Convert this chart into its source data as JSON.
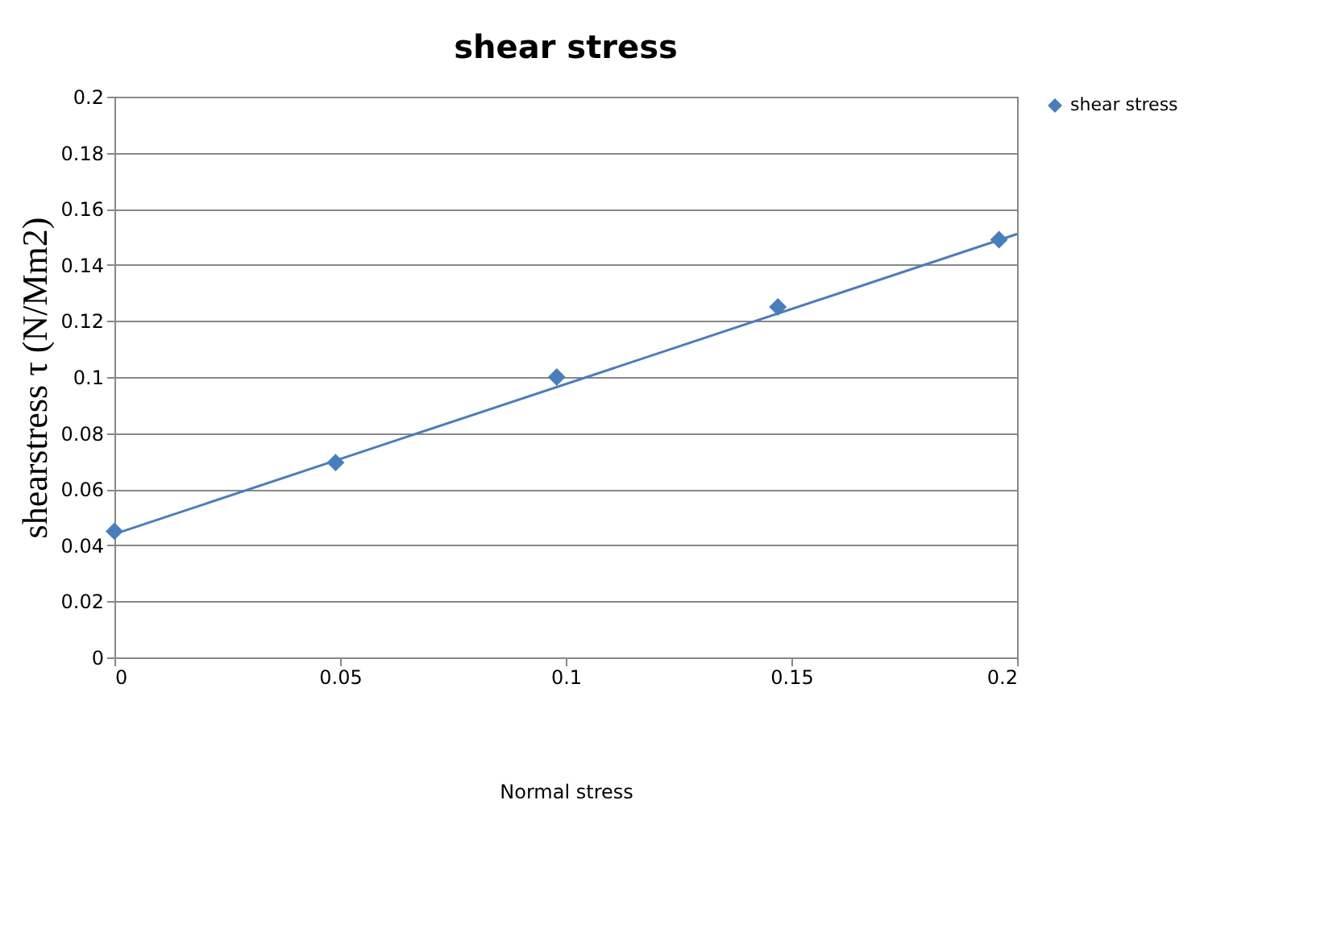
{
  "chart_data": {
    "type": "scatter",
    "title": "shear stress",
    "xlabel": "Normal stress",
    "ylabel": "shearstress τ (N/Mm2)",
    "xlim": [
      0,
      0.2
    ],
    "xticks": [
      0,
      0.05,
      0.1,
      0.15,
      0.2
    ],
    "ylim": [
      0,
      0.2
    ],
    "yticks": [
      0,
      0.02,
      0.04,
      0.06,
      0.08,
      0.1,
      0.12,
      0.14,
      0.16,
      0.18,
      0.2
    ],
    "grid": "y",
    "legend": "right",
    "series": [
      {
        "name": "shear stress",
        "type": "scatter",
        "marker": "diamond",
        "color": "#4a7ebb",
        "x": [
          0,
          0.049,
          0.098,
          0.147,
          0.196
        ],
        "values": [
          0.045,
          0.0695,
          0.1,
          0.125,
          0.149
        ]
      },
      {
        "type": "line",
        "marker": "none",
        "color": "#4a7ebb",
        "x": [
          0,
          0.2
        ],
        "values": [
          0.044,
          0.151
        ]
      }
    ]
  }
}
